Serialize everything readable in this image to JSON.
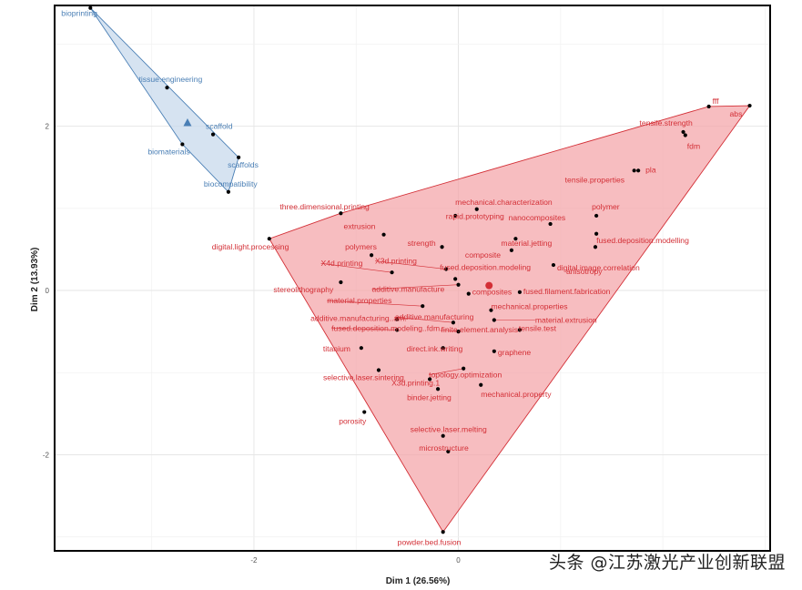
{
  "chart_data": {
    "type": "scatter",
    "title": "",
    "xlabel": "Dim 1 (26.56%)",
    "ylabel": "Dim 2 (13.93%)",
    "xlim": [
      -3.95,
      3.05
    ],
    "ylim": [
      -3.17,
      3.47
    ],
    "x_ticks": [
      -2,
      0
    ],
    "y_ticks": [
      2,
      0,
      -2
    ],
    "grid": true,
    "legend": "none",
    "colors": {
      "blue": "#4a7fb5",
      "blue_fill": "#c6d8ec",
      "red": "#d32f36",
      "red_fill": "#f4a3a8",
      "point": "#000000"
    },
    "series": [
      {
        "color": "#4a7fb5",
        "centroid": [
          -2.65,
          2.04
        ],
        "hull": [
          [
            -3.6,
            3.44
          ],
          [
            -2.15,
            1.62
          ],
          [
            -2.25,
            1.2
          ],
          [
            -2.7,
            1.78
          ]
        ],
        "points": [
          {
            "label": "bioprinting",
            "x": -3.6,
            "y": 3.44
          },
          {
            "label": "tissue.engineering",
            "x": -2.85,
            "y": 2.47
          },
          {
            "label": "scaffold",
            "x": -2.4,
            "y": 1.9
          },
          {
            "label": "biomaterials",
            "x": -2.7,
            "y": 1.78
          },
          {
            "label": "scaffolds",
            "x": -2.15,
            "y": 1.62
          },
          {
            "label": "biocompatibility",
            "x": -2.25,
            "y": 1.2
          }
        ]
      },
      {
        "color": "#d32f36",
        "centroid": [
          0.3,
          0.06
        ],
        "hull": [
          [
            2.85,
            2.25
          ],
          [
            -0.15,
            -2.94
          ],
          [
            -1.85,
            0.63
          ],
          [
            -1.15,
            0.94
          ],
          [
            2.45,
            2.24
          ]
        ],
        "points": [
          {
            "label": "fff",
            "x": 2.45,
            "y": 2.24
          },
          {
            "label": "abs",
            "x": 2.85,
            "y": 2.25
          },
          {
            "label": "tensile.strength",
            "x": 2.2,
            "y": 1.93
          },
          {
            "label": "fdm",
            "x": 2.22,
            "y": 1.89
          },
          {
            "label": "pla",
            "x": 1.76,
            "y": 1.46
          },
          {
            "label": "tensile.properties",
            "x": 1.72,
            "y": 1.46
          },
          {
            "label": "mechanical.characterization",
            "x": -0.03,
            "y": 0.91
          },
          {
            "label": "polymer",
            "x": 1.35,
            "y": 0.91
          },
          {
            "label": "three.dimensional.printing",
            "x": -1.15,
            "y": 0.94
          },
          {
            "label": "rapid.prototyping",
            "x": 0.18,
            "y": 0.99
          },
          {
            "label": "nanocomposites",
            "x": 0.9,
            "y": 0.81
          },
          {
            "label": "extrusion",
            "x": -0.73,
            "y": 0.68
          },
          {
            "label": "material.jetting",
            "x": 0.56,
            "y": 0.63
          },
          {
            "label": "fused.deposition.modelling",
            "x": 1.35,
            "y": 0.69
          },
          {
            "label": "digital.light.processing",
            "x": -1.85,
            "y": 0.63
          },
          {
            "label": "strength",
            "x": -0.16,
            "y": 0.53
          },
          {
            "label": "polymers",
            "x": -0.85,
            "y": 0.43
          },
          {
            "label": "composite",
            "x": 0.52,
            "y": 0.49
          },
          {
            "label": "digital.image.correlation",
            "x": 1.34,
            "y": 0.53
          },
          {
            "label": "X3d.printing",
            "x": -0.12,
            "y": 0.26
          },
          {
            "label": "fused.deposition.modeling",
            "x": -0.03,
            "y": 0.14
          },
          {
            "label": "anisotropy",
            "x": 0.93,
            "y": 0.31
          },
          {
            "label": "X4d.printing",
            "x": -0.65,
            "y": 0.22
          },
          {
            "label": "stereolithography",
            "x": -1.15,
            "y": 0.1
          },
          {
            "label": "additive.manufacture",
            "x": 0,
            "y": 0.07
          },
          {
            "label": "composites",
            "x": 0.1,
            "y": -0.04
          },
          {
            "label": "fused.filament.fabrication",
            "x": 0.6,
            "y": -0.02
          },
          {
            "label": "material.properties",
            "x": -0.35,
            "y": -0.19
          },
          {
            "label": "mechanical.properties",
            "x": 0.32,
            "y": -0.24
          },
          {
            "label": "additive.manufacturing..am.",
            "x": -0.6,
            "y": -0.35
          },
          {
            "label": "additive.manufacturing",
            "x": -0.05,
            "y": -0.39
          },
          {
            "label": "material.extrusion",
            "x": 0.35,
            "y": -0.36
          },
          {
            "label": "fused.deposition.modeling..fdm.",
            "x": -0.6,
            "y": -0.48
          },
          {
            "label": "finite.element.analysis",
            "x": 0,
            "y": -0.5
          },
          {
            "label": "tensile.test",
            "x": 0.6,
            "y": -0.48
          },
          {
            "label": "titanium",
            "x": -0.95,
            "y": -0.7
          },
          {
            "label": "direct.ink.writing",
            "x": -0.15,
            "y": -0.7
          },
          {
            "label": "graphene",
            "x": 0.35,
            "y": -0.74
          },
          {
            "label": "selective.laser.sintering",
            "x": -0.78,
            "y": -0.97
          },
          {
            "label": "topology.optimization",
            "x": 0.05,
            "y": -0.95
          },
          {
            "label": "X3d.printing.1",
            "x": -0.28,
            "y": -1.08
          },
          {
            "label": "binder.jetting",
            "x": -0.2,
            "y": -1.2
          },
          {
            "label": "mechanical.property",
            "x": 0.22,
            "y": -1.15
          },
          {
            "label": "porosity",
            "x": -0.92,
            "y": -1.48
          },
          {
            "label": "selective.laser.melting",
            "x": -0.15,
            "y": -1.77
          },
          {
            "label": "microstructure",
            "x": -0.1,
            "y": -1.96
          },
          {
            "label": "powder.bed.fusion",
            "x": -0.15,
            "y": -2.94
          }
        ]
      }
    ]
  },
  "watermark": "头条 @江苏激光产业创新联盟"
}
